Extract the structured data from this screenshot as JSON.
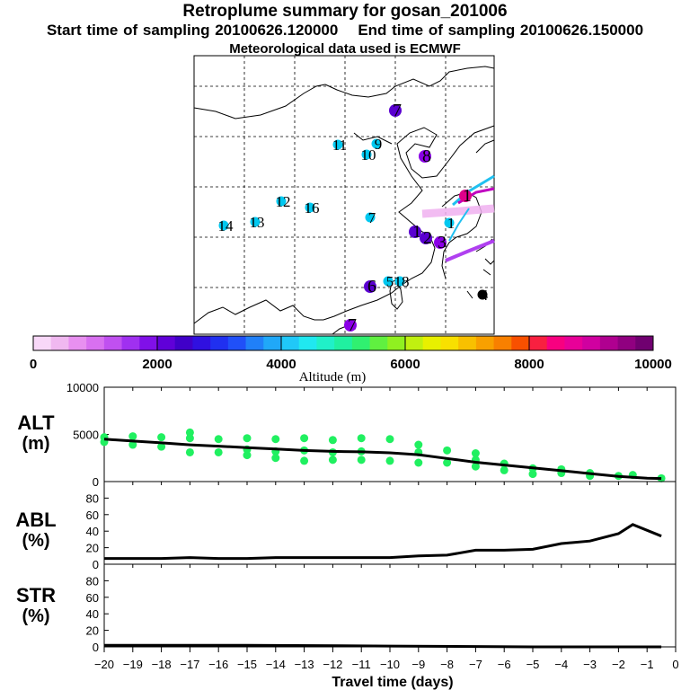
{
  "header": {
    "title": "Retroplume summary for gosan_201006",
    "start_label": "Start time of sampling 20100626.120000",
    "end_label": "End time of sampling 20100626.150000",
    "met_label": "Meteorological data used is ECMWF"
  },
  "map": {
    "markers": [
      {
        "label": "7",
        "color": "#5a00d0",
        "big": true
      },
      {
        "label": "11",
        "color": "#00c8f0",
        "big": false
      },
      {
        "label": "9",
        "color": "#00c8f0",
        "big": false
      },
      {
        "label": "10",
        "color": "#00c8f0",
        "big": false
      },
      {
        "label": "8",
        "color": "#8a00e6",
        "big": true
      },
      {
        "label": "12",
        "color": "#00c8f0",
        "big": false
      },
      {
        "label": "16",
        "color": "#00c8f0",
        "big": false
      },
      {
        "label": "14",
        "color": "#00c8f0",
        "big": false
      },
      {
        "label": "13",
        "color": "#00c8f0",
        "big": false
      },
      {
        "label": "7",
        "color": "#00c8f0",
        "big": false
      },
      {
        "label": "1",
        "color": "#5a00d0",
        "big": true
      },
      {
        "label": "1",
        "color": "#e0008a",
        "big": true
      },
      {
        "label": "1",
        "color": "#00c8f0",
        "big": false
      },
      {
        "label": "2",
        "color": "#5a00d0",
        "big": true
      },
      {
        "label": "3",
        "color": "#8a00e6",
        "big": true
      },
      {
        "label": "6",
        "color": "#5a00d0",
        "big": true
      },
      {
        "label": "5",
        "color": "#00c8f0",
        "big": false
      },
      {
        "label": "18",
        "color": "#00c8f0",
        "big": false
      },
      {
        "label": "4",
        "color": "#000000",
        "big": false
      },
      {
        "label": "7",
        "color": "#8a00e6",
        "big": true
      }
    ]
  },
  "colorbar": {
    "tick_labels": [
      "0",
      "2000",
      "4000",
      "6000",
      "8000",
      "10000"
    ],
    "label": "Altitude (m)",
    "colors": [
      "#f8d8f8",
      "#f0b8f0",
      "#e890f0",
      "#d870f0",
      "#c050f0",
      "#a030f0",
      "#8010e8",
      "#6000d8",
      "#4000c8",
      "#3010e0",
      "#2030f0",
      "#2050f8",
      "#2080f8",
      "#20a8f8",
      "#20c8f8",
      "#20e8f0",
      "#20f0c8",
      "#20f0a0",
      "#30f070",
      "#60f040",
      "#90f020",
      "#c0f010",
      "#e8f000",
      "#f8e000",
      "#f8c000",
      "#f8a000",
      "#f88000",
      "#f85000",
      "#f82040",
      "#f80080",
      "#e80098",
      "#d000a0",
      "#b00090",
      "#900080",
      "#700070"
    ]
  },
  "panels": {
    "alt_label_1": "ALT",
    "alt_label_2": "(m)",
    "abl_label_1": "ABL",
    "abl_label_2": "(%)",
    "str_label_1": "STR",
    "str_label_2": "(%)",
    "x_axis_title": "Travel time (days)"
  },
  "chart_data": [
    {
      "type": "line",
      "title": "ALT",
      "ylabel": "ALT (m)",
      "xlim": [
        -20,
        0
      ],
      "ylim": [
        0,
        10000
      ],
      "yticks": [
        0,
        5000,
        10000
      ],
      "x": [
        -20,
        -19,
        -18,
        -17,
        -16,
        -15,
        -14,
        -13,
        -12,
        -11,
        -10,
        -9,
        -8,
        -7,
        -6,
        -5,
        -4,
        -3,
        -2,
        -1,
        -0.5
      ],
      "series": [
        {
          "name": "median altitude",
          "color": "#000000",
          "values": [
            4500,
            4300,
            4100,
            3900,
            3750,
            3600,
            3450,
            3300,
            3200,
            3150,
            3050,
            2850,
            2450,
            2050,
            1750,
            1450,
            1150,
            850,
            550,
            350,
            320
          ]
        },
        {
          "name": "cluster altitudes",
          "color": "#20f060",
          "points": [
            [
              -20,
              4200
            ],
            [
              -20,
              4700
            ],
            [
              -19,
              3900
            ],
            [
              -19,
              4800
            ],
            [
              -18,
              3700
            ],
            [
              -18,
              4700
            ],
            [
              -17,
              3100
            ],
            [
              -17,
              4600
            ],
            [
              -17,
              5200
            ],
            [
              -16,
              3100
            ],
            [
              -16,
              4500
            ],
            [
              -15,
              2800
            ],
            [
              -15,
              3400
            ],
            [
              -15,
              4600
            ],
            [
              -14,
              2500
            ],
            [
              -14,
              3200
            ],
            [
              -14,
              4500
            ],
            [
              -13,
              2200
            ],
            [
              -13,
              3300
            ],
            [
              -13,
              4600
            ],
            [
              -12,
              2300
            ],
            [
              -12,
              3100
            ],
            [
              -12,
              4400
            ],
            [
              -11,
              2300
            ],
            [
              -11,
              3200
            ],
            [
              -11,
              4600
            ],
            [
              -10,
              2200
            ],
            [
              -10,
              4500
            ],
            [
              -9,
              2000
            ],
            [
              -9,
              3100
            ],
            [
              -9,
              3900
            ],
            [
              -8,
              2000
            ],
            [
              -8,
              3300
            ],
            [
              -7,
              1600
            ],
            [
              -7,
              2300
            ],
            [
              -7,
              3000
            ],
            [
              -6,
              1200
            ],
            [
              -6,
              1900
            ],
            [
              -5,
              800
            ],
            [
              -5,
              1400
            ],
            [
              -4,
              900
            ],
            [
              -4,
              1300
            ],
            [
              -3,
              600
            ],
            [
              -3,
              900
            ],
            [
              -2,
              600
            ],
            [
              -1.5,
              700
            ],
            [
              -0.5,
              350
            ]
          ]
        }
      ]
    },
    {
      "type": "line",
      "title": "ABL",
      "ylabel": "ABL (%)",
      "xlim": [
        -20,
        0
      ],
      "ylim": [
        0,
        100
      ],
      "yticks": [
        0,
        20,
        40,
        60,
        80
      ],
      "x": [
        -20,
        -19,
        -18,
        -17,
        -16,
        -15,
        -14,
        -13,
        -12,
        -11,
        -10,
        -9,
        -8,
        -7,
        -6,
        -5,
        -4,
        -3,
        -2,
        -1.5,
        -0.5
      ],
      "series": [
        {
          "name": "ABL fraction",
          "color": "#000000",
          "values": [
            7,
            7,
            7,
            8,
            7,
            7,
            8,
            8,
            8,
            8,
            8,
            10,
            11,
            17,
            17,
            18,
            25,
            28,
            37,
            48,
            34
          ]
        }
      ]
    },
    {
      "type": "line",
      "title": "STR",
      "ylabel": "STR (%)",
      "xlabel": "Travel time (days)",
      "xlim": [
        -20,
        0
      ],
      "ylim": [
        0,
        100
      ],
      "yticks": [
        0,
        20,
        40,
        60,
        80
      ],
      "xticks": [
        -20,
        -19,
        -18,
        -17,
        -16,
        -15,
        -14,
        -13,
        -12,
        -11,
        -10,
        -9,
        -8,
        -7,
        -6,
        -5,
        -4,
        -3,
        -2,
        -1,
        0
      ],
      "x": [
        -20,
        -15,
        -10,
        -5,
        -0.5
      ],
      "series": [
        {
          "name": "stratospheric fraction",
          "color": "#000000",
          "values": [
            2,
            2,
            1,
            0,
            0
          ]
        }
      ]
    }
  ]
}
